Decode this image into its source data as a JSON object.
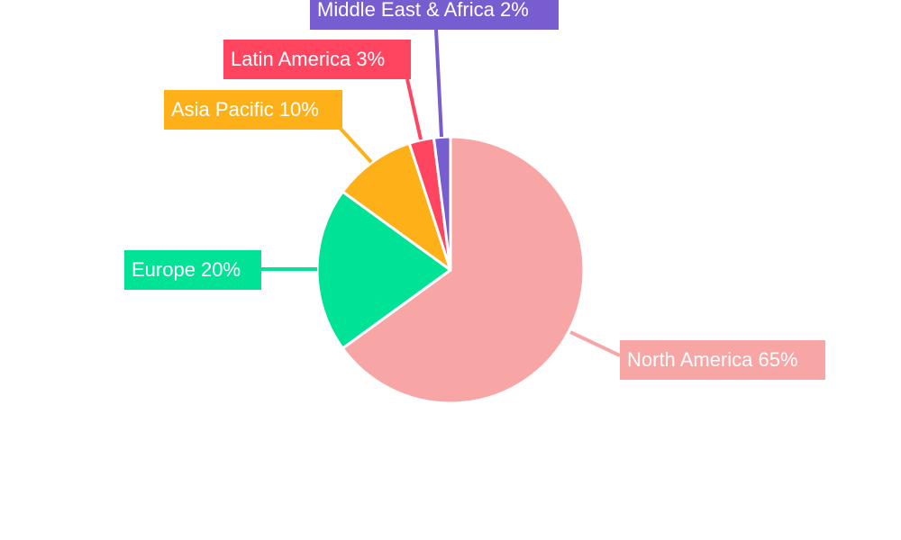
{
  "chart_data": {
    "type": "pie",
    "title": "",
    "start_angle": "top",
    "direction": "clockwise",
    "legend": "none",
    "slices": [
      {
        "label": "North America",
        "value": 65,
        "text": "North America 65%",
        "color": "#F8A5A5"
      },
      {
        "label": "Europe",
        "value": 20,
        "text": "Europe 20%",
        "color": "#00E396"
      },
      {
        "label": "Asia Pacific",
        "value": 10,
        "text": "Asia Pacific 10%",
        "color": "#FEB019"
      },
      {
        "label": "Latin America",
        "value": 3,
        "text": "Latin America 3%",
        "color": "#FF4560"
      },
      {
        "label": "Middle East & Africa",
        "value": 2,
        "text": "Middle East & Africa 2%",
        "color": "#775DD0"
      }
    ]
  }
}
